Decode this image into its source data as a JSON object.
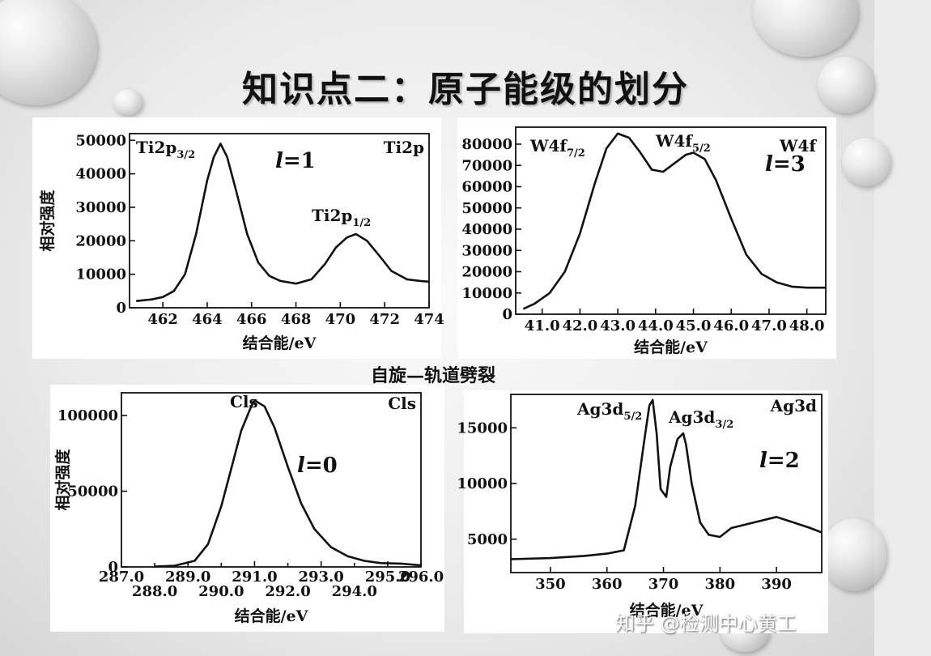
{
  "slide": {
    "title": "知识点二：原子能级的划分",
    "center_label": "自旋—轨道劈裂",
    "watermark": "知乎 @检测中心黄工"
  },
  "chart_data": [
    {
      "id": "ti",
      "type": "line",
      "corner_label": "Ti2p",
      "quantum_label": "l=1",
      "peak_labels": [
        "Ti2p3/2",
        "Ti2p1/2"
      ],
      "xlabel": "结合能/eV",
      "ylabel": "相对强度",
      "xlim": [
        460.5,
        474
      ],
      "ylim": [
        0,
        52000
      ],
      "x_ticks": [
        462,
        464,
        466,
        468,
        470,
        472,
        474
      ],
      "y_ticks": [
        0,
        10000,
        20000,
        30000,
        40000,
        50000
      ],
      "x": [
        460.8,
        461.5,
        462,
        462.5,
        463,
        463.5,
        464,
        464.3,
        464.6,
        464.9,
        465.3,
        465.8,
        466.3,
        466.8,
        467.3,
        468,
        468.7,
        469.3,
        469.8,
        470.3,
        470.7,
        471.2,
        471.7,
        472.3,
        473,
        473.6,
        474
      ],
      "y": [
        2000,
        2500,
        3200,
        5000,
        10000,
        22000,
        38000,
        45000,
        49000,
        45000,
        35000,
        22000,
        13500,
        9500,
        8000,
        7200,
        8500,
        13000,
        18000,
        21000,
        22000,
        20000,
        16000,
        11000,
        8500,
        8000,
        7800
      ]
    },
    {
      "id": "w",
      "type": "line",
      "corner_label": "W4f",
      "quantum_label": "l=3",
      "peak_labels": [
        "W4f7/2",
        "W4f5/2"
      ],
      "xlabel": "结合能/eV",
      "xlim": [
        40.3,
        48.5
      ],
      "ylim": [
        0,
        88000
      ],
      "x_ticks": [
        41.0,
        42.0,
        43.0,
        44.0,
        45.0,
        46.0,
        47.0,
        48.0
      ],
      "y_ticks": [
        0,
        10000,
        20000,
        30000,
        40000,
        50000,
        60000,
        70000,
        80000
      ],
      "x": [
        40.5,
        40.8,
        41.2,
        41.6,
        42.0,
        42.4,
        42.7,
        43.0,
        43.3,
        43.6,
        43.9,
        44.2,
        44.5,
        44.8,
        45.0,
        45.3,
        45.6,
        46.0,
        46.4,
        46.8,
        47.2,
        47.6,
        48.0,
        48.5
      ],
      "y": [
        2500,
        5000,
        10000,
        20000,
        38000,
        62000,
        78000,
        85000,
        83000,
        76000,
        68000,
        67000,
        71000,
        75000,
        76000,
        73000,
        63000,
        45000,
        28000,
        19000,
        15000,
        13000,
        12500,
        12500
      ]
    },
    {
      "id": "c",
      "type": "line",
      "corner_label": "Cls",
      "quantum_label": "l=0",
      "peak_labels": [
        "Cls"
      ],
      "xlabel": "结合能/eV",
      "ylabel": "相对强度",
      "xlim": [
        287,
        296
      ],
      "ylim": [
        0,
        115000
      ],
      "x_ticks_upper": [
        "287.0",
        "289.0",
        "291.0",
        "293.0",
        "295.0",
        "296.0"
      ],
      "x_ticks_lower": [
        "288.0",
        "290.0",
        "292.0",
        "294.0"
      ],
      "y_ticks": [
        0,
        50000,
        100000
      ],
      "x": [
        288.0,
        288.6,
        289.2,
        289.6,
        290.0,
        290.3,
        290.6,
        290.9,
        291.0,
        291.3,
        291.6,
        292.0,
        292.4,
        292.8,
        293.3,
        293.8,
        294.3,
        294.8,
        295.4,
        296.0
      ],
      "y": [
        200,
        800,
        4000,
        15000,
        40000,
        65000,
        90000,
        106000,
        110000,
        106000,
        92000,
        66000,
        42000,
        25000,
        13000,
        7000,
        4000,
        2500,
        2200,
        1000
      ]
    },
    {
      "id": "ag",
      "type": "line",
      "corner_label": "Ag3d",
      "quantum_label": "l=2",
      "peak_labels": [
        "Ag3d5/2",
        "Ag3d3/2"
      ],
      "xlabel": "结合能/eV",
      "xlim": [
        343,
        398
      ],
      "ylim": [
        2000,
        18000
      ],
      "x_ticks": [
        350,
        360,
        370,
        380,
        390
      ],
      "y_ticks": [
        5000,
        10000,
        15000
      ],
      "x": [
        343,
        350,
        356,
        360,
        363,
        365,
        366.5,
        367.5,
        368.1,
        368.8,
        369.5,
        370.5,
        371.2,
        372.5,
        373.5,
        374,
        375,
        376.5,
        378,
        380,
        382,
        386,
        390,
        393,
        396,
        398
      ],
      "y": [
        3200,
        3300,
        3500,
        3700,
        4000,
        8000,
        13500,
        17000,
        17500,
        14500,
        9500,
        8800,
        11500,
        14000,
        14500,
        13500,
        10000,
        6500,
        5400,
        5200,
        6000,
        6500,
        7000,
        6500,
        6000,
        5600
      ]
    }
  ]
}
